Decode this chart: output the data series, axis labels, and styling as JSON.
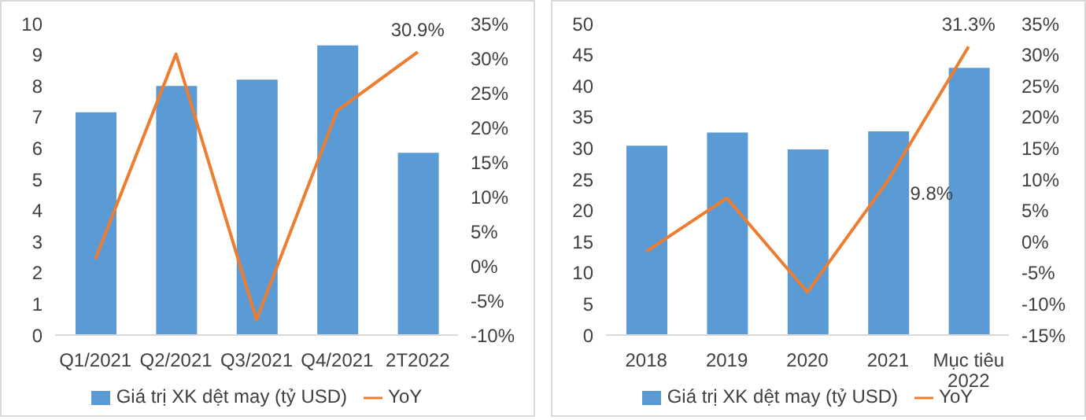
{
  "chart_data": [
    {
      "type": "bar",
      "categories": [
        "Q1/2021",
        "Q2/2021",
        "Q3/2021",
        "Q4/2021",
        "2T2022"
      ],
      "series": [
        {
          "name": "Giá trị XK dệt may (tỷ USD)",
          "color": "#5b9bd5",
          "values": [
            7.15,
            8.0,
            8.2,
            9.3,
            5.85
          ]
        },
        {
          "name": "YoY",
          "type": "line",
          "axis": "y2",
          "color": "#ed7d31",
          "values": [
            1.0,
            30.6,
            -7.8,
            22.4,
            30.9
          ],
          "value_labels": [
            null,
            null,
            null,
            null,
            "30.9%"
          ]
        }
      ],
      "ylim": [
        0,
        10
      ],
      "yticks": [
        0,
        1,
        2,
        3,
        4,
        5,
        6,
        7,
        8,
        9,
        10
      ],
      "y2lim": [
        -10,
        35
      ],
      "y2ticks": [
        {
          "value": -10,
          "label": "-10%"
        },
        {
          "value": -5,
          "label": "-5%"
        },
        {
          "value": 0,
          "label": "0%"
        },
        {
          "value": 5,
          "label": "5%"
        },
        {
          "value": 10,
          "label": "10%"
        },
        {
          "value": 15,
          "label": "15%"
        },
        {
          "value": 20,
          "label": "20%"
        },
        {
          "value": 25,
          "label": "25%"
        },
        {
          "value": 30,
          "label": "30%"
        },
        {
          "value": 35,
          "label": "35%"
        }
      ],
      "legend": "bottom",
      "marker": "none"
    },
    {
      "type": "bar",
      "categories": [
        "2018",
        "2019",
        "2020",
        "2021",
        "Mục tiêu 2022"
      ],
      "series": [
        {
          "name": "Giá trị XK dệt may (tỷ USD)",
          "color": "#5b9bd5",
          "values": [
            30.4,
            32.5,
            29.8,
            32.7,
            42.9
          ]
        },
        {
          "name": "YoY",
          "type": "line",
          "axis": "y2",
          "color": "#ed7d31",
          "values": [
            -1.6,
            7.0,
            -8.1,
            9.8,
            31.3
          ],
          "value_labels": [
            null,
            null,
            null,
            "9.8%",
            "31.3%"
          ]
        }
      ],
      "ylim": [
        0,
        50
      ],
      "yticks": [
        0,
        5,
        10,
        15,
        20,
        25,
        30,
        35,
        40,
        45,
        50
      ],
      "y2lim": [
        -15,
        35
      ],
      "y2ticks": [
        {
          "value": -15,
          "label": "-15%"
        },
        {
          "value": -10,
          "label": "-10%"
        },
        {
          "value": -5,
          "label": "-5%"
        },
        {
          "value": 0,
          "label": "0%"
        },
        {
          "value": 5,
          "label": "5%"
        },
        {
          "value": 10,
          "label": "10%"
        },
        {
          "value": 15,
          "label": "15%"
        },
        {
          "value": 20,
          "label": "20%"
        },
        {
          "value": 25,
          "label": "25%"
        },
        {
          "value": 30,
          "label": "30%"
        },
        {
          "value": 35,
          "label": "35%"
        }
      ],
      "legend": "bottom",
      "marker": "none"
    }
  ]
}
